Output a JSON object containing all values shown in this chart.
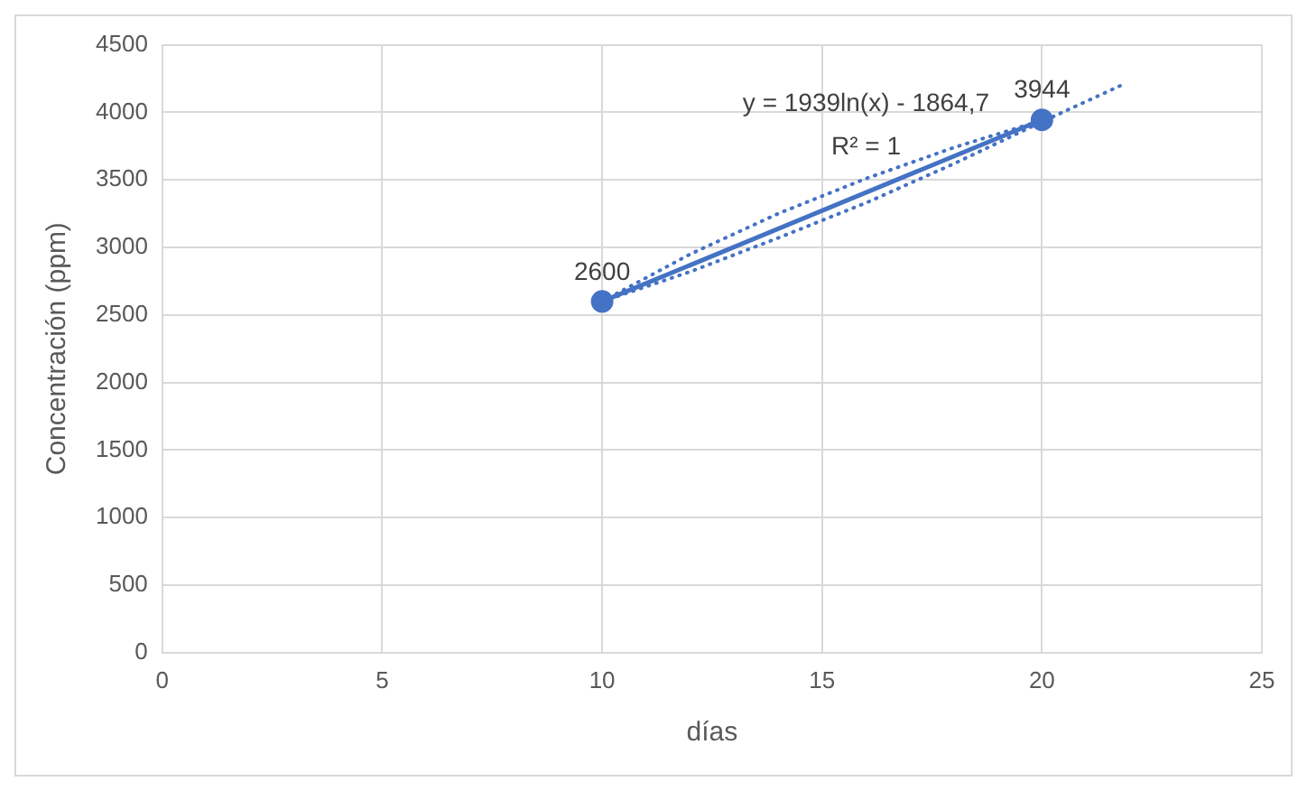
{
  "chart_data": {
    "type": "line",
    "xlabel": "días",
    "ylabel": "Concentración (ppm)",
    "xlim": [
      0,
      25
    ],
    "xticks": [
      0,
      5,
      10,
      15,
      20,
      25
    ],
    "ylim": [
      0,
      4500
    ],
    "yticks": [
      0,
      500,
      1000,
      1500,
      2000,
      2500,
      3000,
      3500,
      4000,
      4500
    ],
    "grid": true,
    "legend": false,
    "series": [
      {
        "color": "#4472c4",
        "x": [
          10,
          20
        ],
        "values": [
          2600,
          3944
        ],
        "value_labels": [
          "2600",
          "3944"
        ],
        "marker": "circle",
        "line_style": "solid"
      },
      {
        "color": "#4472c4",
        "x": [
          10,
          12,
          14,
          16,
          18,
          20
        ],
        "values": [
          2600,
          2950,
          3250,
          3510,
          3740,
          3940
        ],
        "marker": "none",
        "line_style": "dotted"
      },
      {
        "color": "#4472c4",
        "x": [
          10,
          12,
          14,
          16,
          18,
          20,
          21.8
        ],
        "values": [
          2600,
          2820,
          3070,
          3330,
          3620,
          3930,
          4200
        ],
        "marker": "none",
        "line_style": "dotted"
      }
    ],
    "annotations": [
      "y = 1939ln(x) - 1864,7",
      "R² = 1"
    ]
  }
}
